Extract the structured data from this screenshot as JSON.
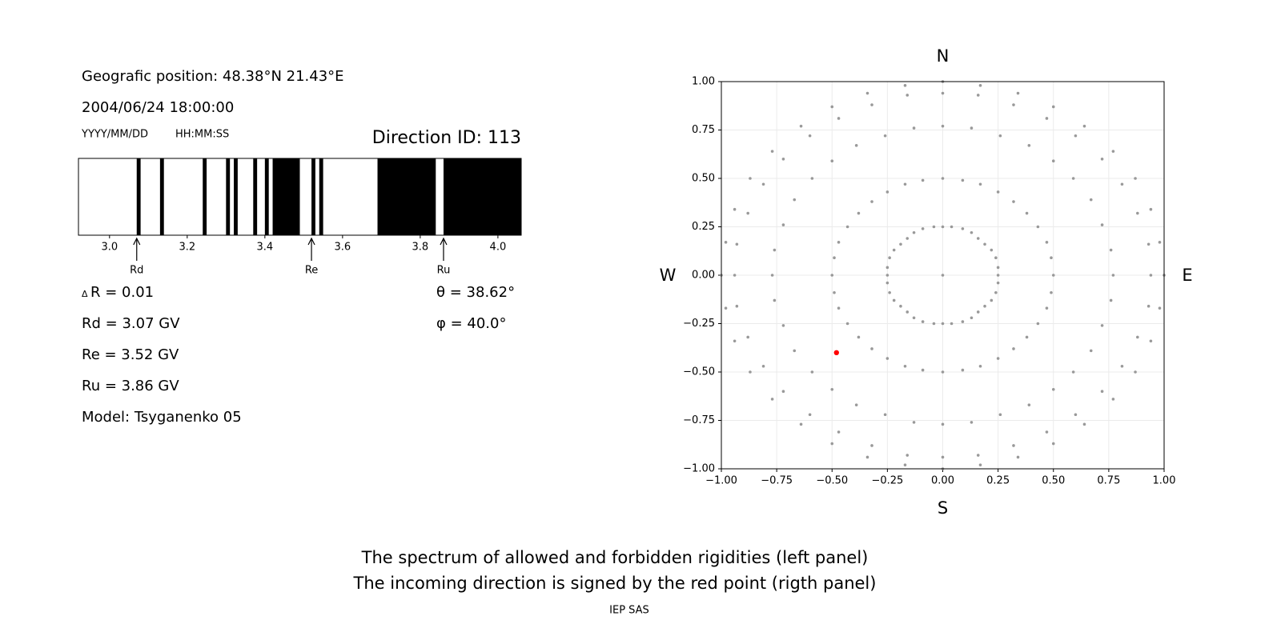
{
  "info": {
    "position": "Geografic position: 48.38°N 21.43°E",
    "datetime": "2004/06/24 18:00:00",
    "date_format": "YYYY/MM/DD",
    "time_format": "HH:MM:SS",
    "direction_id": "Direction ID: 113",
    "delta_symbol": "Δ",
    "delta_r": "R = 0.01",
    "rd": "Rd = 3.07 GV",
    "re": "Re = 3.52 GV",
    "ru": "Ru = 3.86 GV",
    "model": "Model: Tsyganenko 05",
    "theta": "θ = 38.62°",
    "phi": "φ = 40.0°",
    "captions": [
      "The spectrum of allowed and forbidden rigidities (left panel)",
      "The incoming direction is signed by the red point (rigth panel)"
    ],
    "credit": "IEP SAS"
  },
  "chart_data": [
    {
      "type": "spectrum",
      "xlim": [
        2.92,
        4.06
      ],
      "xticks": [
        {
          "value": 3.0,
          "label": "3.0"
        },
        {
          "value": 3.2,
          "label": "3.2"
        },
        {
          "value": 3.4,
          "label": "3.4"
        },
        {
          "value": 3.6,
          "label": "3.6"
        },
        {
          "value": 3.8,
          "label": "3.8"
        },
        {
          "value": 4.0,
          "label": "4.0"
        }
      ],
      "color": "#000000",
      "ranges": [
        [
          3.07,
          3.08
        ],
        [
          3.13,
          3.14
        ],
        [
          3.24,
          3.25
        ],
        [
          3.3,
          3.31
        ],
        [
          3.32,
          3.33
        ],
        [
          3.37,
          3.38
        ],
        [
          3.4,
          3.41
        ],
        [
          3.42,
          3.49
        ],
        [
          3.52,
          3.53
        ],
        [
          3.54,
          3.55
        ],
        [
          3.69,
          3.84
        ],
        [
          3.86,
          4.06
        ]
      ],
      "markers": [
        {
          "label": "Rd",
          "value": 3.07
        },
        {
          "label": "Re",
          "value": 3.52
        },
        {
          "label": "Ru",
          "value": 3.86
        }
      ]
    },
    {
      "type": "scatter",
      "xlim": [
        -1,
        1
      ],
      "ylim": [
        -1,
        1
      ],
      "grid": true,
      "xticks": [
        {
          "value": -1,
          "label": "−1.00"
        },
        {
          "value": -0.75,
          "label": "−0.75"
        },
        {
          "value": -0.5,
          "label": "−0.50"
        },
        {
          "value": -0.25,
          "label": "−0.25"
        },
        {
          "value": 0,
          "label": "0.00"
        },
        {
          "value": 0.25,
          "label": "0.25"
        },
        {
          "value": 0.5,
          "label": "0.50"
        },
        {
          "value": 0.75,
          "label": "0.75"
        },
        {
          "value": 1,
          "label": "1.00"
        }
      ],
      "yticks": [
        {
          "value": -1,
          "label": "−1.00"
        },
        {
          "value": -0.75,
          "label": "−0.75"
        },
        {
          "value": -0.5,
          "label": "−0.50"
        },
        {
          "value": -0.25,
          "label": "−0.25"
        },
        {
          "value": 0,
          "label": "0.00"
        },
        {
          "value": 0.25,
          "label": "0.25"
        },
        {
          "value": 0.5,
          "label": "0.50"
        },
        {
          "value": 0.75,
          "label": "0.75"
        },
        {
          "value": 1,
          "label": "1.00"
        }
      ],
      "compass": {
        "top": "N",
        "bottom": "S",
        "left": "W",
        "right": "E"
      },
      "series": [
        {
          "color": "#999999",
          "x": [
            0,
            0.17,
            0.34,
            0.5,
            0.64,
            0.77,
            0.87,
            0.94,
            0.98,
            1,
            0.98,
            0.94,
            0.87,
            0.77,
            0.64,
            0.5,
            0.34,
            0.17,
            0,
            -0.17,
            -0.34,
            -0.5,
            -0.64,
            -0.77,
            -0.87,
            -0.94,
            -0.98,
            -1,
            -0.98,
            -0.94,
            -0.87,
            -0.77,
            -0.64,
            -0.5,
            -0.34,
            -0.17,
            0,
            0.16,
            0.32,
            0.47,
            0.6,
            0.72,
            0.81,
            0.88,
            0.93,
            0.94,
            0.93,
            0.88,
            0.81,
            0.72,
            0.6,
            0.47,
            0.32,
            0.16,
            0,
            -0.16,
            -0.32,
            -0.47,
            -0.6,
            -0.72,
            -0.81,
            -0.88,
            -0.93,
            -0.94,
            -0.93,
            -0.88,
            -0.81,
            -0.72,
            -0.6,
            -0.47,
            -0.32,
            -0.16,
            0,
            0.13,
            0.26,
            0.39,
            0.5,
            0.59,
            0.67,
            0.72,
            0.76,
            0.77,
            0.76,
            0.72,
            0.67,
            0.59,
            0.5,
            0.39,
            0.26,
            0.13,
            0,
            -0.13,
            -0.26,
            -0.39,
            -0.5,
            -0.59,
            -0.67,
            -0.72,
            -0.76,
            -0.77,
            -0.76,
            -0.72,
            -0.67,
            -0.59,
            -0.5,
            -0.39,
            -0.26,
            -0.13,
            0,
            0.09,
            0.17,
            0.25,
            0.32,
            0.38,
            0.43,
            0.47,
            0.49,
            0.5,
            0.49,
            0.47,
            0.43,
            0.38,
            0.32,
            0.25,
            0.17,
            0.09,
            0,
            -0.09,
            -0.17,
            -0.25,
            -0.32,
            -0.38,
            -0.43,
            -0.47,
            -0.49,
            -0.5,
            -0.49,
            -0.47,
            -0.43,
            -0.38,
            -0.32,
            -0.25,
            -0.17,
            -0.09,
            0,
            0.04,
            0.09,
            0.13,
            0.16,
            0.19,
            0.22,
            0.24,
            0.25,
            0.25,
            0.25,
            0.24,
            0.22,
            0.19,
            0.16,
            0.13,
            0.09,
            0.04,
            0,
            -0.04,
            -0.09,
            -0.13,
            -0.16,
            -0.19,
            -0.22,
            -0.24,
            -0.25,
            -0.25,
            -0.25,
            -0.24,
            -0.22,
            -0.19,
            -0.16,
            -0.13,
            -0.09,
            -0.04,
            0
          ],
          "values": [
            1,
            0.98,
            0.94,
            0.87,
            0.77,
            0.64,
            0.5,
            0.34,
            0.17,
            0,
            -0.17,
            -0.34,
            -0.5,
            -0.64,
            -0.77,
            -0.87,
            -0.94,
            -0.98,
            -1,
            -0.98,
            -0.94,
            -0.87,
            -0.77,
            -0.64,
            -0.5,
            -0.34,
            -0.17,
            0,
            0.17,
            0.34,
            0.5,
            0.64,
            0.77,
            0.87,
            0.94,
            0.98,
            0.94,
            0.93,
            0.88,
            0.81,
            0.72,
            0.6,
            0.47,
            0.32,
            0.16,
            0,
            -0.16,
            -0.32,
            -0.47,
            -0.6,
            -0.72,
            -0.81,
            -0.88,
            -0.93,
            -0.94,
            -0.93,
            -0.88,
            -0.81,
            -0.72,
            -0.6,
            -0.47,
            -0.32,
            -0.16,
            0,
            0.16,
            0.32,
            0.47,
            0.6,
            0.72,
            0.81,
            0.88,
            0.93,
            0.77,
            0.76,
            0.72,
            0.67,
            0.59,
            0.5,
            0.39,
            0.26,
            0.13,
            0,
            -0.13,
            -0.26,
            -0.39,
            -0.5,
            -0.59,
            -0.67,
            -0.72,
            -0.76,
            -0.77,
            -0.76,
            -0.72,
            -0.67,
            -0.59,
            -0.5,
            -0.39,
            -0.26,
            -0.13,
            0,
            0.13,
            0.26,
            0.39,
            0.5,
            0.59,
            0.67,
            0.72,
            0.76,
            0.5,
            0.49,
            0.47,
            0.43,
            0.38,
            0.32,
            0.25,
            0.17,
            0.09,
            0,
            -0.09,
            -0.17,
            -0.25,
            -0.32,
            -0.38,
            -0.43,
            -0.47,
            -0.49,
            -0.5,
            -0.49,
            -0.47,
            -0.43,
            -0.38,
            -0.32,
            -0.25,
            -0.17,
            -0.09,
            0,
            0.09,
            0.17,
            0.25,
            0.32,
            0.38,
            0.43,
            0.47,
            0.49,
            0.25,
            0.25,
            0.24,
            0.22,
            0.19,
            0.16,
            0.13,
            0.09,
            0.04,
            0,
            -0.04,
            -0.09,
            -0.13,
            -0.16,
            -0.19,
            -0.22,
            -0.24,
            -0.25,
            -0.25,
            -0.25,
            -0.24,
            -0.22,
            -0.19,
            -0.16,
            -0.13,
            -0.09,
            -0.04,
            0,
            0.04,
            0.09,
            0.13,
            0.16,
            0.19,
            0.22,
            0.24,
            0.25,
            0
          ]
        },
        {
          "color": "#ff0000",
          "x": [
            -0.48
          ],
          "values": [
            -0.4
          ]
        }
      ]
    }
  ]
}
